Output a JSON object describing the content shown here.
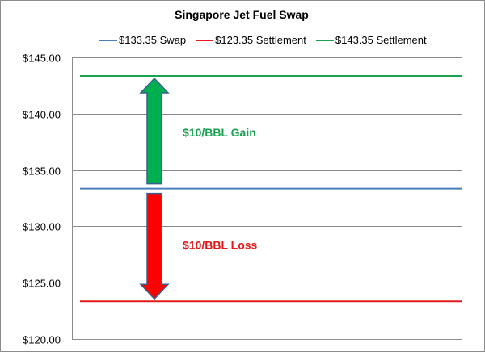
{
  "chart_data": {
    "type": "line",
    "title": "Singapore Jet Fuel Swap",
    "xlabel": "",
    "ylabel": "",
    "ylim": [
      120,
      145
    ],
    "yticks": [
      120,
      125,
      130,
      135,
      140,
      145
    ],
    "ytick_labels": [
      "$120.00",
      "$125.00",
      "$130.00",
      "$135.00",
      "$140.00",
      "$145.00"
    ],
    "grid": true,
    "legend_position": "top",
    "series": [
      {
        "name": "$133.35 Swap",
        "value": 133.35,
        "color": "#4a7ebb"
      },
      {
        "name": "$123.35 Settlement",
        "value": 123.35,
        "color": "#e31a1c"
      },
      {
        "name": "$143.35 Settlement",
        "value": 143.35,
        "color": "#1aa353"
      }
    ],
    "annotations": [
      {
        "text": "$10/BBL Gain",
        "color": "#1aa353",
        "arrow_from": 133.35,
        "arrow_to": 143.35,
        "arrow_color": "#00b050"
      },
      {
        "text": "$10/BBL Loss",
        "color": "#e31a1c",
        "arrow_from": 133.35,
        "arrow_to": 123.35,
        "arrow_color": "#ff0000"
      }
    ]
  }
}
